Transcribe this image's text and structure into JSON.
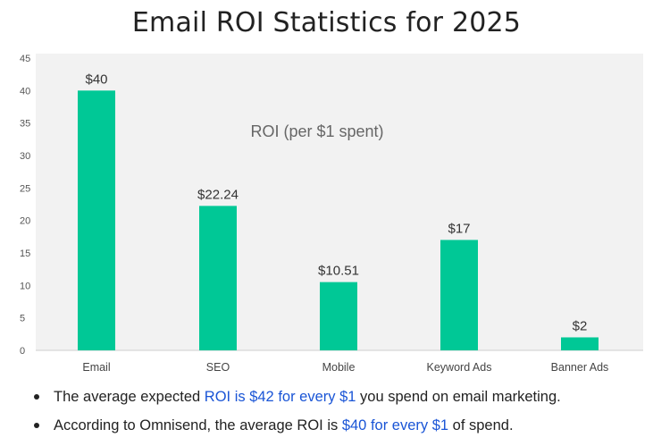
{
  "title": "Email ROI Statistics for 2025",
  "chart_data": {
    "type": "bar",
    "title": "",
    "annotation": "ROI (per $1 spent)",
    "categories": [
      "Email",
      "SEO",
      "Mobile",
      "Keyword Ads",
      "Banner Ads"
    ],
    "values": [
      40,
      22.24,
      10.51,
      17,
      2
    ],
    "value_labels": [
      "$40",
      "$22.24",
      "$10.51",
      "$17",
      "$2"
    ],
    "ylim": [
      0,
      45
    ],
    "yticks": [
      "0",
      "5",
      "10",
      "15",
      "20",
      "25",
      "30",
      "35",
      "40",
      "45"
    ],
    "xlabel": "",
    "ylabel": "",
    "grid": false,
    "bar_color": "#00c896",
    "plot_background": "#f2f2f2"
  },
  "bullets": [
    {
      "before": "The average expected ",
      "highlight": "ROI is $42 for every $1",
      "after": " you spend on email marketing."
    },
    {
      "before": "According to Omnisend, the average ROI is ",
      "highlight": "$40 for every $1",
      "after": " of spend."
    }
  ],
  "colors": {
    "highlight": "#1a55d6"
  }
}
